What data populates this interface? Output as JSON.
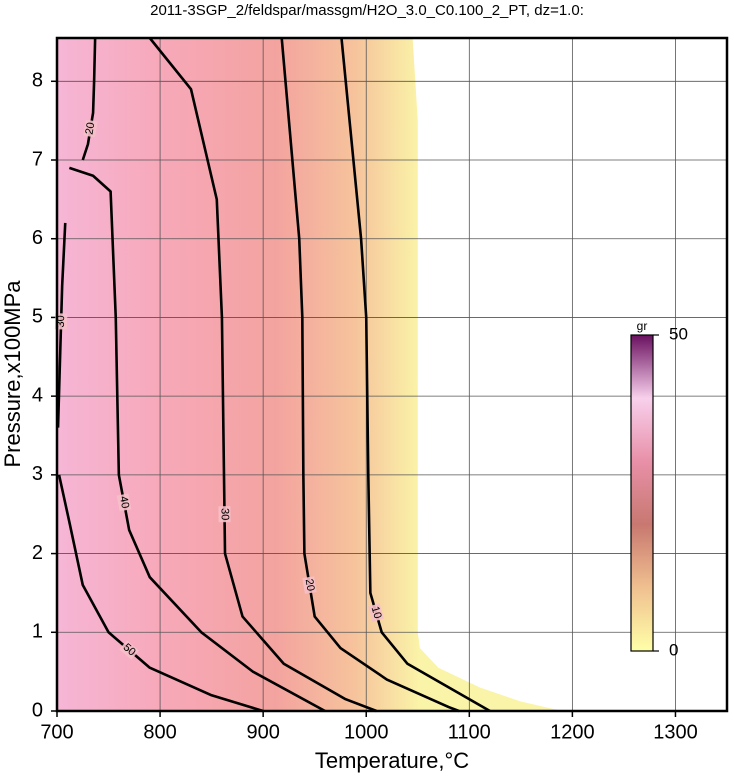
{
  "chart_data": {
    "type": "contour",
    "title": "2011-3SGP_2/feldspar/massgm/H2O_3.0_C0.100_2_PT, dz=1.0:",
    "x_label": "Temperature,°C",
    "y_label": "Pressure,x100MPa",
    "xlim": [
      700,
      1350
    ],
    "ylim": [
      0,
      8.55
    ],
    "xticks": [
      700,
      800,
      900,
      1000,
      1100,
      1200,
      1300
    ],
    "yticks": [
      0,
      1,
      2,
      3,
      4,
      5,
      6,
      7,
      8
    ],
    "grid": true,
    "field_boundary": {
      "x": [
        700,
        1045,
        1050,
        1050,
        1052,
        1070,
        1110,
        1150,
        1190,
        700
      ],
      "y": [
        8.55,
        8.55,
        7.5,
        1.0,
        0.8,
        0.55,
        0.3,
        0.12,
        0,
        0
      ]
    },
    "contours": [
      {
        "level": 10,
        "x": [
          976,
          995,
          1000,
          1002,
          1004,
          1015,
          1040,
          1080,
          1120
        ],
        "y": [
          8.55,
          6,
          5,
          3,
          1.5,
          1,
          0.6,
          0.3,
          0
        ]
      },
      {
        "level": 20,
        "x": [
          918,
          935,
          938,
          939,
          940,
          950,
          975,
          1020,
          1080,
          1090
        ],
        "y": [
          8.55,
          6,
          5,
          3,
          2,
          1.2,
          0.8,
          0.4,
          0.05,
          0
        ]
      },
      {
        "level": 30,
        "x": [
          790,
          830,
          855,
          860,
          862,
          863,
          880,
          920,
          980,
          1010
        ],
        "y": [
          8.55,
          7.9,
          6.5,
          5,
          3,
          2,
          1.2,
          0.6,
          0.15,
          0
        ]
      },
      {
        "level": 40,
        "x": [
          712,
          735,
          752,
          757,
          760,
          770,
          790,
          840,
          890,
          960
        ],
        "y": [
          6.9,
          6.8,
          6.6,
          5,
          3,
          2.3,
          1.7,
          1,
          0.5,
          0
        ]
      },
      {
        "level": 50,
        "x": [
          702,
          712,
          725,
          750,
          790,
          850,
          900
        ],
        "y": [
          3,
          2.4,
          1.6,
          1,
          0.55,
          0.2,
          0
        ]
      },
      {
        "level": 20,
        "x": [
          737,
          736,
          735,
          730,
          725
        ],
        "y": [
          8.55,
          8.0,
          7.6,
          7.2,
          7.0
        ]
      },
      {
        "level": 30,
        "x": [
          708,
          705,
          703,
          701
        ],
        "y": [
          6.2,
          5.4,
          4.5,
          3.6
        ]
      }
    ],
    "colorbar": {
      "label": "gr",
      "lim": [
        0,
        50
      ],
      "ticks": [
        0,
        50
      ]
    },
    "colormap": [
      "#ffffa8",
      "#f0c090",
      "#c87870",
      "#e890a8",
      "#f8d0ec",
      "#6a1060"
    ]
  }
}
